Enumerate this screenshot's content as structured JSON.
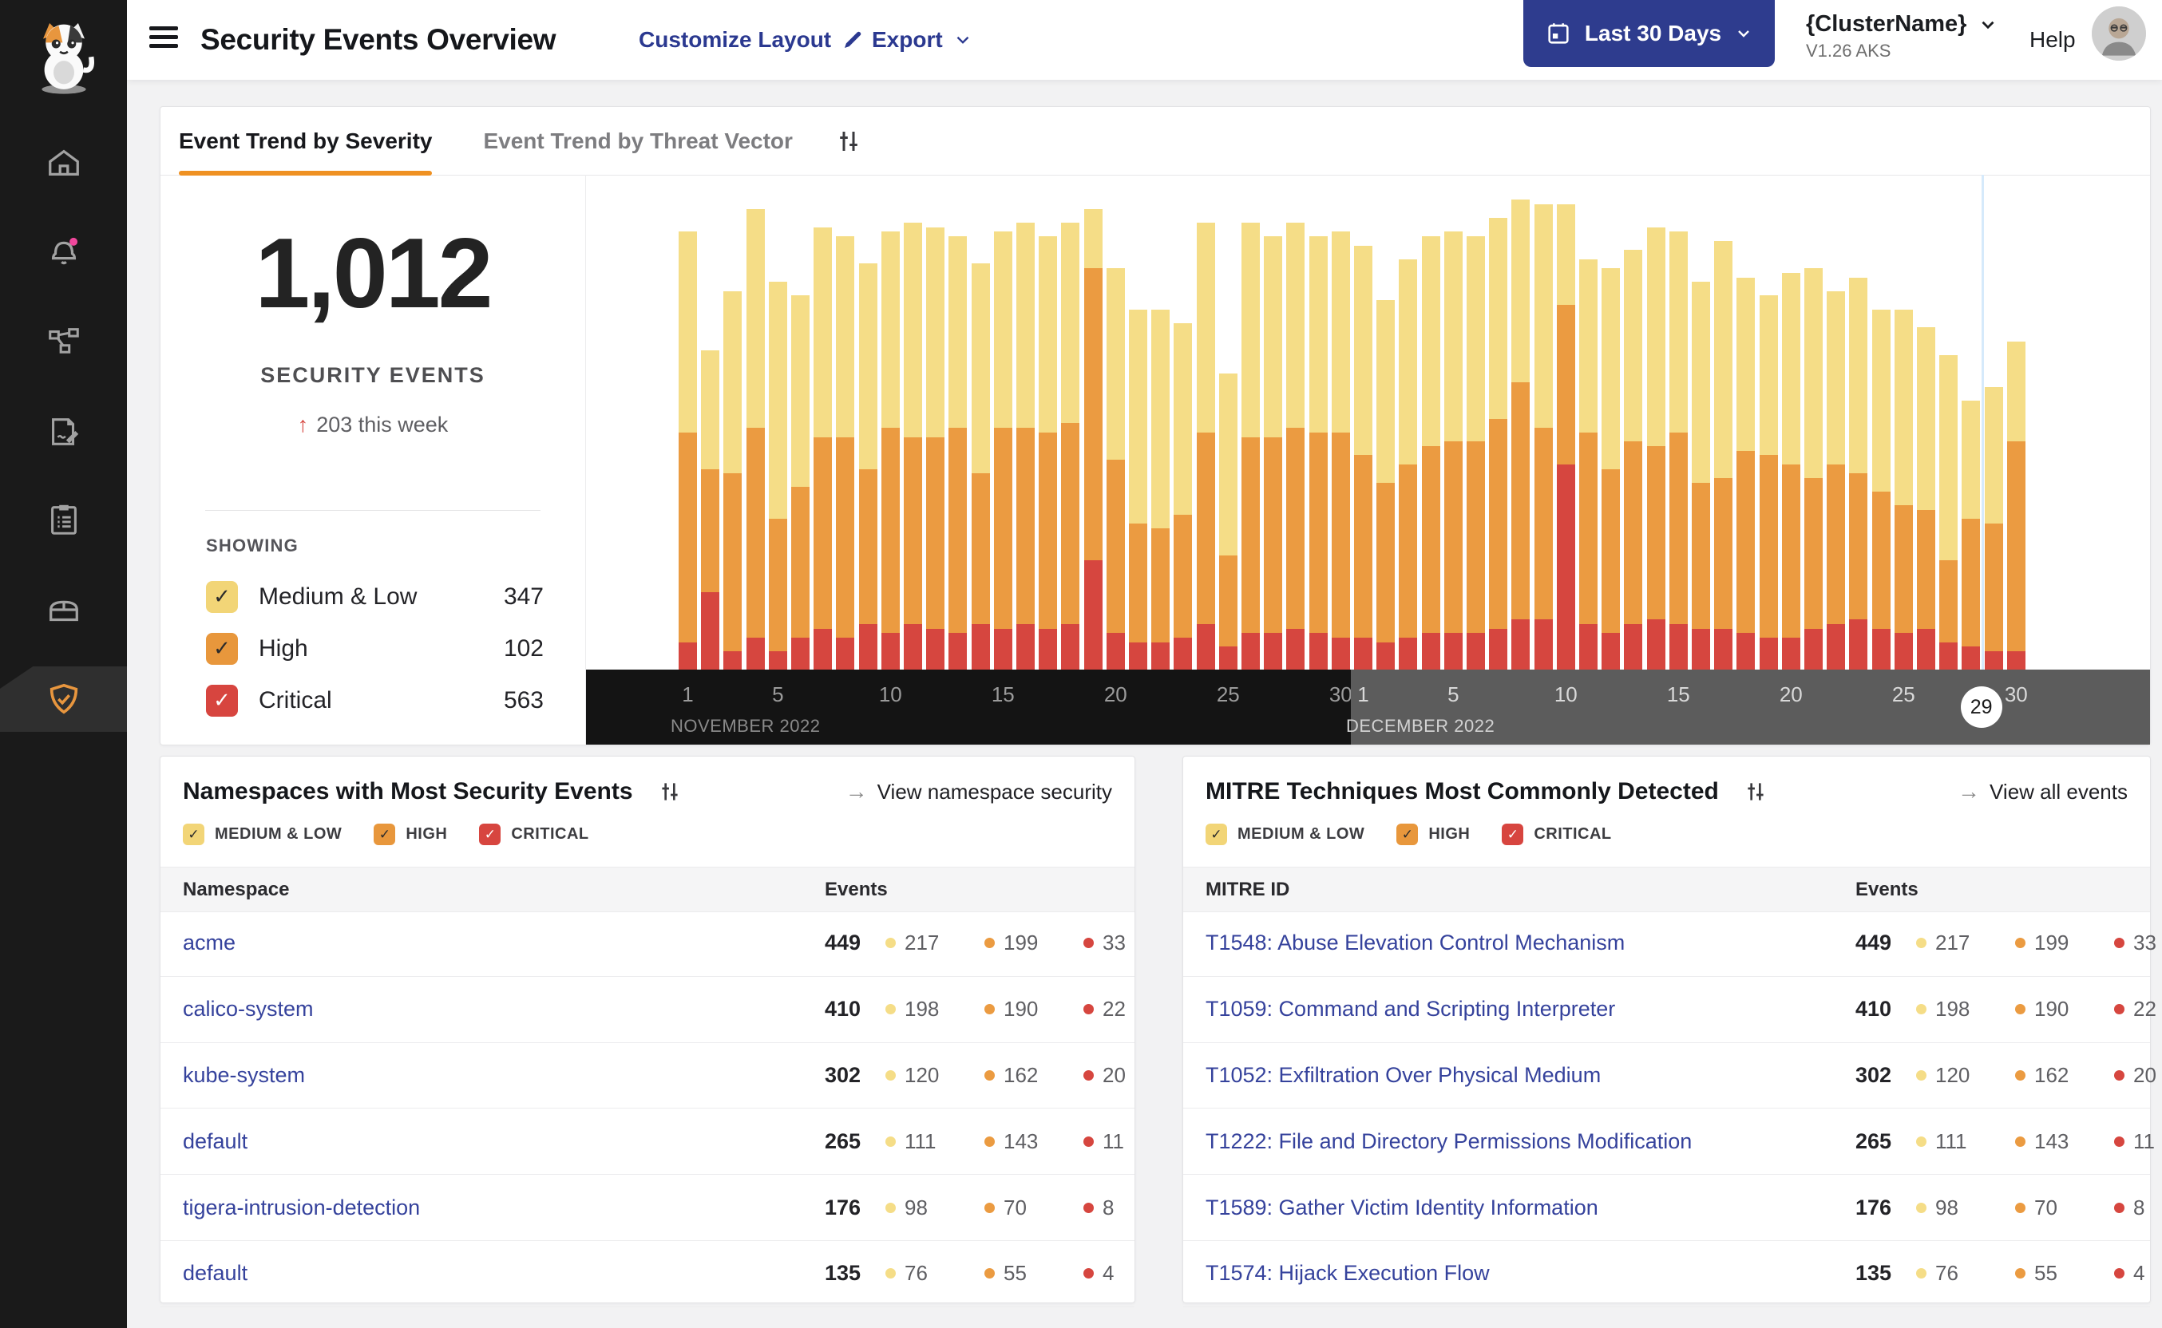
{
  "header": {
    "title": "Security Events Overview",
    "customize_label": "Customize Layout",
    "export_label": "Export",
    "date_range_label": "Last 30 Days",
    "cluster_name": "{ClusterName}",
    "cluster_version": "V1.26 AKS",
    "help_label": "Help"
  },
  "sidebar": {
    "icons": [
      "calico-cat-logo",
      "home",
      "notifications-bell",
      "service-graph",
      "policy-editor",
      "compliance-clipboard",
      "workload-storage",
      "threat-defense-shield"
    ],
    "active_item": "threat-defense-shield"
  },
  "tabs": {
    "items": [
      {
        "label": "Event Trend by Severity",
        "active": true
      },
      {
        "label": "Event Trend by Threat Vector",
        "active": false
      }
    ]
  },
  "summary": {
    "total": "1,012",
    "total_label": "SECURITY EVENTS",
    "delta_arrow": "↑",
    "delta": "203 this week",
    "showing_label": "SHOWING",
    "severities": [
      {
        "label": "Medium & Low",
        "count": "347",
        "box_color": "#f2d577",
        "check": "dark"
      },
      {
        "label": "High",
        "count": "102",
        "box_color": "#e8973c",
        "check": "dark"
      },
      {
        "label": "Critical",
        "count": "563",
        "box_color": "#d7453f",
        "check": "white"
      }
    ]
  },
  "chart_data": {
    "type": "bar",
    "stacked": true,
    "title": "Event Trend by Severity",
    "ylim": [
      0,
      105
    ],
    "grid": false,
    "legend_position": "left-panel",
    "categories": [
      "Nov 1",
      "Nov 2",
      "Nov 3",
      "Nov 4",
      "Nov 5",
      "Nov 6",
      "Nov 7",
      "Nov 8",
      "Nov 9",
      "Nov 10",
      "Nov 11",
      "Nov 12",
      "Nov 13",
      "Nov 14",
      "Nov 15",
      "Nov 16",
      "Nov 17",
      "Nov 18",
      "Nov 19",
      "Nov 20",
      "Nov 21",
      "Nov 22",
      "Nov 23",
      "Nov 24",
      "Nov 25",
      "Nov 26",
      "Nov 27",
      "Nov 28",
      "Nov 29",
      "Nov 30",
      "Dec 1",
      "Dec 2",
      "Dec 3",
      "Dec 4",
      "Dec 5",
      "Dec 6",
      "Dec 7",
      "Dec 8",
      "Dec 9",
      "Dec 10",
      "Dec 11",
      "Dec 12",
      "Dec 13",
      "Dec 14",
      "Dec 15",
      "Dec 16",
      "Dec 17",
      "Dec 18",
      "Dec 19",
      "Dec 20",
      "Dec 21",
      "Dec 22",
      "Dec 23",
      "Dec 24",
      "Dec 25",
      "Dec 26",
      "Dec 27",
      "Dec 28",
      "Dec 29",
      "Dec 30"
    ],
    "series": [
      {
        "name": "Medium & Low",
        "color": "#f5dd87",
        "values": [
          44,
          26,
          40,
          48,
          52,
          42,
          46,
          44,
          45,
          43,
          47,
          46,
          42,
          46,
          43,
          45,
          43,
          44,
          13,
          42,
          47,
          48,
          42,
          46,
          40,
          47,
          44,
          45,
          43,
          44,
          46,
          40,
          45,
          46,
          46,
          45,
          44,
          40,
          49,
          22,
          38,
          44,
          42,
          48,
          44,
          44,
          52,
          38,
          35,
          42,
          46,
          38,
          43,
          40,
          43,
          40,
          45,
          26,
          30,
          22
        ]
      },
      {
        "name": "High",
        "color": "#eb9b41",
        "values": [
          46,
          27,
          39,
          46,
          29,
          33,
          42,
          44,
          34,
          45,
          41,
          42,
          45,
          33,
          44,
          43,
          43,
          44,
          64,
          38,
          26,
          25,
          27,
          42,
          20,
          43,
          43,
          44,
          44,
          45,
          40,
          35,
          38,
          41,
          42,
          42,
          46,
          52,
          42,
          35,
          42,
          36,
          40,
          38,
          42,
          32,
          33,
          40,
          40,
          38,
          33,
          35,
          32,
          30,
          28,
          26,
          18,
          28,
          28,
          46
        ]
      },
      {
        "name": "Critical",
        "color": "#d6463f",
        "values": [
          6,
          17,
          4,
          7,
          4,
          7,
          9,
          7,
          10,
          8,
          10,
          9,
          8,
          10,
          9,
          10,
          9,
          10,
          24,
          8,
          6,
          6,
          7,
          10,
          5,
          8,
          8,
          9,
          8,
          7,
          7,
          6,
          7,
          8,
          8,
          8,
          9,
          11,
          11,
          45,
          10,
          8,
          10,
          11,
          10,
          9,
          9,
          8,
          7,
          7,
          9,
          10,
          11,
          9,
          8,
          9,
          6,
          5,
          4,
          4
        ]
      }
    ],
    "months": [
      {
        "label": "NOVEMBER 2022",
        "start_index": 0,
        "tick_days": [
          1,
          5,
          10,
          15,
          20,
          25,
          30
        ],
        "band_color": "#141414"
      },
      {
        "label": "DECEMBER 2022",
        "start_index": 30,
        "tick_days": [
          1,
          5,
          10,
          15,
          20,
          25,
          30
        ],
        "band_color": "#5c5c5c",
        "current_day": 29
      }
    ],
    "current_day_line_color": "#d6eafb"
  },
  "filters": [
    {
      "label": "MEDIUM & LOW",
      "box_color": "#f2d577",
      "check": "dark"
    },
    {
      "label": "HIGH",
      "box_color": "#e8973c",
      "check": "dark"
    },
    {
      "label": "CRITICAL",
      "box_color": "#d7453f",
      "check": "white"
    }
  ],
  "namespaces_card": {
    "title": "Namespaces with Most Security Events",
    "view_link": "View namespace security",
    "col1": "Namespace",
    "col2": "Events",
    "rows": [
      {
        "name": "acme",
        "total": "449",
        "medium_low": "217",
        "high": "199",
        "critical": "33"
      },
      {
        "name": "calico-system",
        "total": "410",
        "medium_low": "198",
        "high": "190",
        "critical": "22"
      },
      {
        "name": "kube-system",
        "total": "302",
        "medium_low": "120",
        "high": "162",
        "critical": "20"
      },
      {
        "name": "default",
        "total": "265",
        "medium_low": "111",
        "high": "143",
        "critical": "11"
      },
      {
        "name": "tigera-intrusion-detection",
        "total": "176",
        "medium_low": "98",
        "high": "70",
        "critical": "8"
      },
      {
        "name": "default",
        "total": "135",
        "medium_low": "76",
        "high": "55",
        "critical": "4"
      }
    ]
  },
  "mitre_card": {
    "title": "MITRE Techniques Most Commonly Detected",
    "view_link": "View all events",
    "col1": "MITRE ID",
    "col2": "Events",
    "rows": [
      {
        "name": "T1548: Abuse Elevation Control Mechanism",
        "total": "449",
        "medium_low": "217",
        "high": "199",
        "critical": "33"
      },
      {
        "name": "T1059: Command and Scripting Interpreter",
        "total": "410",
        "medium_low": "198",
        "high": "190",
        "critical": "22"
      },
      {
        "name": "T1052: Exfiltration Over Physical Medium",
        "total": "302",
        "medium_low": "120",
        "high": "162",
        "critical": "20"
      },
      {
        "name": "T1222: File and Directory Permissions Modification",
        "total": "265",
        "medium_low": "111",
        "high": "143",
        "critical": "11"
      },
      {
        "name": "T1589: Gather Victim Identity Information",
        "total": "176",
        "medium_low": "98",
        "high": "70",
        "critical": "8"
      },
      {
        "name": "T1574: Hijack Execution Flow",
        "total": "135",
        "medium_low": "76",
        "high": "55",
        "critical": "4"
      }
    ]
  },
  "colors": {
    "accent_orange": "#ef9122",
    "navy_link": "#2b3990",
    "navy_button": "#2e3c8e",
    "table_link": "#35429c",
    "medium_low": "#f5dd87",
    "high": "#eb9b41",
    "critical": "#d6463f",
    "notification_dot": "#f0479c",
    "sidebar_active_icon": "#e8963e",
    "nov_band": "#141414",
    "dec_band": "#5c5c5c"
  }
}
